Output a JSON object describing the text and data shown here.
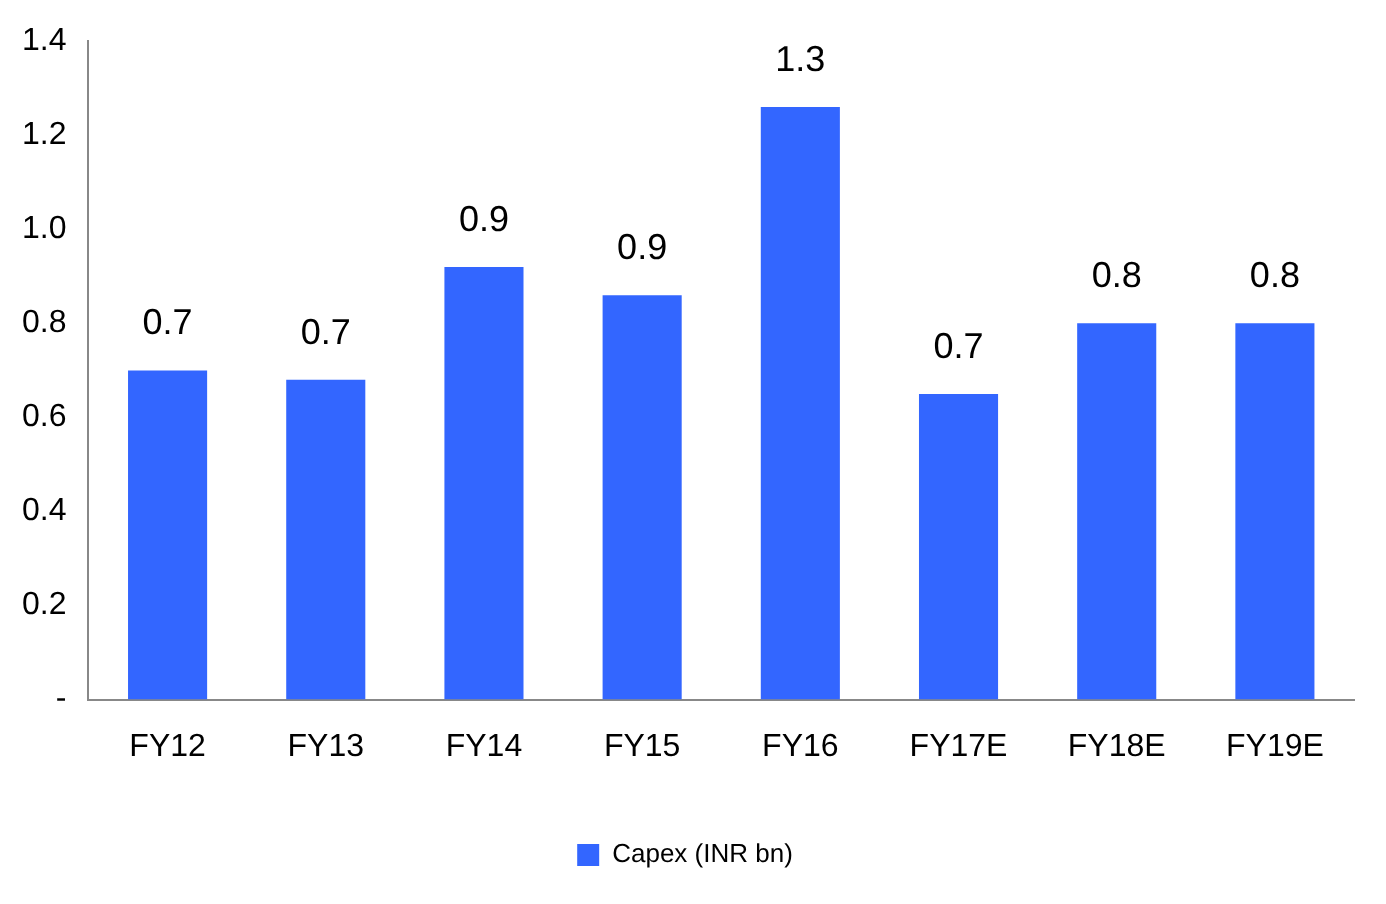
{
  "chart_data": {
    "type": "bar",
    "categories": [
      "FY12",
      "FY13",
      "FY14",
      "FY15",
      "FY16",
      "FY17E",
      "FY18E",
      "FY19E"
    ],
    "series": [
      {
        "name": "Capex (INR bn)",
        "color": "#3366ff",
        "values": [
          0.7,
          0.68,
          0.92,
          0.86,
          1.26,
          0.65,
          0.8,
          0.8
        ],
        "value_labels": [
          "0.7",
          "0.7",
          "0.9",
          "0.9",
          "1.3",
          "0.7",
          "0.8",
          "0.8"
        ]
      }
    ],
    "ylim": [
      0,
      1.4
    ],
    "yticks": [
      {
        "value": 0,
        "label": "-"
      },
      0.2,
      0.4,
      0.6,
      0.8,
      {
        "value": 1.0,
        "label": "1.0"
      },
      1.2,
      1.4
    ],
    "grid": false,
    "legend": "bottom"
  }
}
